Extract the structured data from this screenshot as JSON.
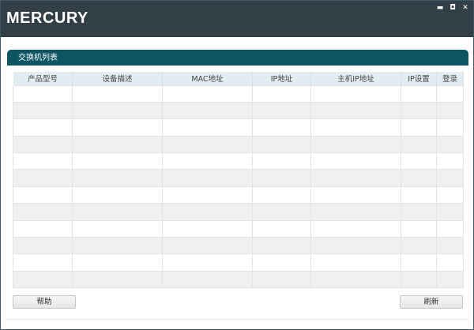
{
  "window": {
    "logo": "MERCURY",
    "minimize": "▬",
    "maximize": "◘",
    "close": "✕"
  },
  "panel": {
    "title": "交换机列表"
  },
  "table": {
    "columns": [
      "产品型号",
      "设备描述",
      "MAC地址",
      "IP地址",
      "主机IP地址",
      "IP设置",
      "登录"
    ],
    "rows": []
  },
  "buttons": {
    "help": "帮助",
    "refresh": "刷新"
  },
  "colors": {
    "titlebar": "#333f47",
    "panel_header": "#0d5563",
    "table_header": "#e3ecf0"
  }
}
